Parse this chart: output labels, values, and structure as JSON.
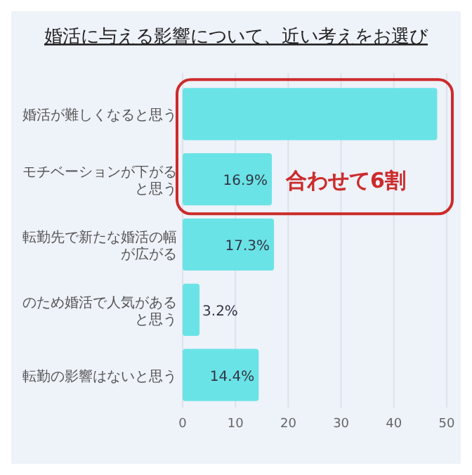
{
  "chart_data": {
    "type": "bar",
    "orientation": "horizontal",
    "title": "婚活に与える影響について、近い考えをお選び",
    "categories": [
      "婚活が難しくなると思う",
      "モチベーションが下がると思う",
      "転勤先で新たな婚活の幅が広がる",
      "のため婚活で人気があると思う",
      "転勤の影響はないと思う"
    ],
    "values": [
      48.2,
      16.9,
      17.3,
      3.2,
      14.4
    ],
    "value_labels": [
      null,
      "16.9%",
      "17.3%",
      "3.2%",
      "14.4%"
    ],
    "color": "#6ae3e6",
    "xlim": [
      0,
      50
    ],
    "xticks": [
      0,
      10,
      20,
      30,
      40,
      50
    ],
    "grid": "x",
    "annotations": [
      "合わせて6割"
    ]
  }
}
